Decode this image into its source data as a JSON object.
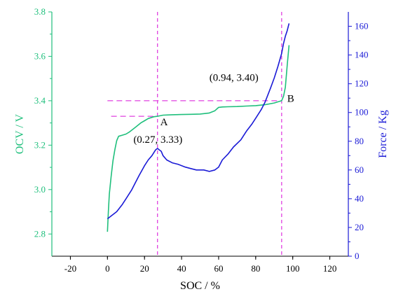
{
  "chart_data": {
    "type": "line",
    "xlabel": "SOC / %",
    "ylabel_left": "OCV / V",
    "ylabel_right": "Force / Kg",
    "xlim": [
      -30,
      130
    ],
    "ylim_left": [
      2.7,
      3.8
    ],
    "ylim_right": [
      0,
      170
    ],
    "x_ticks": [
      -20,
      0,
      20,
      40,
      60,
      80,
      100,
      120
    ],
    "y_left_ticks": [
      2.8,
      3.0,
      3.2,
      3.4,
      3.6,
      3.8
    ],
    "y_right_ticks": [
      0,
      20,
      40,
      60,
      80,
      100,
      120,
      140,
      160
    ],
    "grid": false,
    "colors": {
      "ocv": "#1fbf7c",
      "force": "#1a1ad6",
      "guide": "#e040e0",
      "left_axis": "#1fbf7c",
      "right_axis": "#1a1ad6",
      "bottom_axis": "#000000"
    },
    "series": [
      {
        "axis": "left",
        "x": [
          0,
          0.5,
          1,
          2,
          3,
          4,
          5,
          6,
          8,
          10,
          12,
          15,
          18,
          20,
          22,
          25,
          27,
          30,
          35,
          40,
          45,
          50,
          55,
          58,
          60,
          62,
          65,
          70,
          75,
          80,
          85,
          90,
          92,
          94,
          95,
          96,
          97,
          98
        ],
        "y": [
          2.81,
          2.9,
          2.98,
          3.06,
          3.13,
          3.18,
          3.22,
          3.24,
          3.245,
          3.25,
          3.26,
          3.28,
          3.3,
          3.31,
          3.32,
          3.328,
          3.33,
          3.335,
          3.337,
          3.338,
          3.339,
          3.34,
          3.345,
          3.355,
          3.37,
          3.372,
          3.373,
          3.374,
          3.376,
          3.378,
          3.382,
          3.39,
          3.395,
          3.4,
          3.42,
          3.46,
          3.56,
          3.65
        ]
      },
      {
        "axis": "right",
        "x": [
          0,
          2,
          5,
          8,
          10,
          13,
          15,
          17,
          20,
          22,
          24,
          25,
          26,
          27,
          28,
          29,
          30,
          32,
          35,
          38,
          42,
          45,
          48,
          52,
          55,
          58,
          60,
          62,
          65,
          68,
          72,
          75,
          78,
          80,
          83,
          85,
          88,
          90,
          92,
          94,
          95,
          96,
          97,
          98
        ],
        "y": [
          26,
          28,
          31,
          36,
          40,
          46,
          51,
          56,
          63,
          67,
          70,
          72,
          74,
          75,
          74,
          73,
          70,
          67,
          65,
          64,
          62,
          61,
          60,
          60,
          59,
          60,
          62,
          67,
          71,
          76,
          81,
          87,
          92,
          96,
          102,
          107,
          117,
          124,
          132,
          141,
          148,
          153,
          157,
          162
        ]
      }
    ],
    "guides": {
      "vertical_x": [
        27,
        94
      ],
      "horizontal": [
        {
          "y": 3.33,
          "x_from": 2,
          "x_to": 27
        },
        {
          "y": 3.4,
          "x_from": 0,
          "x_to": 94
        }
      ]
    },
    "annotations": [
      {
        "text": "A",
        "x": 28.5,
        "y": 3.29
      },
      {
        "text": "(0.27, 3.33)",
        "x": 14,
        "y": 3.21
      },
      {
        "text": "B",
        "x": 97,
        "y": 3.395
      },
      {
        "text": "(0.94, 3.40)",
        "x": 55,
        "y": 3.49
      }
    ]
  }
}
